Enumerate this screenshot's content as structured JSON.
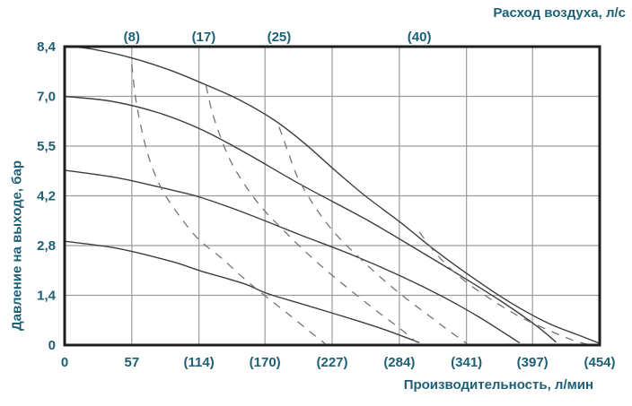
{
  "chart_data": {
    "type": "line",
    "title_top": "Расход воздуха, л/с",
    "xlabel": "Производительность, л/мин",
    "ylabel": "Давление на выходе, бар",
    "grid": true,
    "x_axis": {
      "min": 0,
      "max": 454,
      "tick_values": [
        0,
        57,
        114,
        170,
        227,
        284,
        341,
        397,
        454
      ],
      "tick_labels": [
        "0",
        "57",
        "(114)",
        "(170)",
        "(227)",
        "(284)",
        "(341)",
        "(397)",
        "(454)"
      ]
    },
    "y_axis": {
      "min": 0,
      "max": 8.4,
      "tick_values": [
        0,
        1.4,
        2.8,
        4.2,
        5.5,
        7.0,
        8.4
      ],
      "tick_labels": [
        "0",
        "1,4",
        "2,8",
        "4,2",
        "5,5",
        "7,0",
        "8,4"
      ]
    },
    "top_axis": {
      "ticks": [
        {
          "x": 57,
          "label": "(8)"
        },
        {
          "x": 118,
          "label": "(17)"
        },
        {
          "x": 182,
          "label": "(25)"
        },
        {
          "x": 301,
          "label": "(40)"
        }
      ]
    },
    "series": [
      {
        "name": "performance-curve-8.4-bar",
        "style": "solid",
        "points": [
          [
            0,
            8.42
          ],
          [
            25,
            8.32
          ],
          [
            57,
            8.08
          ],
          [
            90,
            7.73
          ],
          [
            118,
            7.35
          ],
          [
            148,
            6.9
          ],
          [
            178,
            6.28
          ],
          [
            203,
            5.6
          ],
          [
            230,
            4.85
          ],
          [
            255,
            4.2
          ],
          [
            285,
            3.45
          ],
          [
            315,
            2.65
          ],
          [
            347,
            1.88
          ],
          [
            378,
            1.2
          ],
          [
            410,
            0.62
          ],
          [
            436,
            0.28
          ],
          [
            453,
            0.06
          ]
        ]
      },
      {
        "name": "performance-curve-7.0-bar",
        "style": "solid",
        "points": [
          [
            0,
            7.0
          ],
          [
            40,
            6.85
          ],
          [
            80,
            6.5
          ],
          [
            116,
            6.0
          ],
          [
            152,
            5.35
          ],
          [
            200,
            4.5
          ],
          [
            255,
            3.55
          ],
          [
            296,
            2.75
          ],
          [
            336,
            1.95
          ],
          [
            371,
            1.22
          ],
          [
            400,
            0.55
          ],
          [
            417,
            0.08
          ]
        ]
      },
      {
        "name": "performance-curve-4.9-bar",
        "style": "solid",
        "points": [
          [
            0,
            4.87
          ],
          [
            45,
            4.67
          ],
          [
            91,
            4.35
          ],
          [
            116,
            4.15
          ],
          [
            152,
            3.73
          ],
          [
            200,
            3.1
          ],
          [
            243,
            2.55
          ],
          [
            286,
            1.93
          ],
          [
            321,
            1.36
          ],
          [
            351,
            0.8
          ],
          [
            373,
            0.34
          ],
          [
            386,
            0.06
          ]
        ]
      },
      {
        "name": "performance-curve-2.9-bar",
        "style": "solid",
        "points": [
          [
            0,
            2.92
          ],
          [
            45,
            2.72
          ],
          [
            91,
            2.35
          ],
          [
            116,
            2.08
          ],
          [
            152,
            1.73
          ],
          [
            172,
            1.45
          ],
          [
            202,
            1.15
          ],
          [
            241,
            0.76
          ],
          [
            271,
            0.44
          ],
          [
            301,
            0.07
          ]
        ]
      },
      {
        "name": "air-consumption-8-l-s",
        "style": "dashed",
        "points": [
          [
            57,
            7.9
          ],
          [
            60,
            7.0
          ],
          [
            65,
            6.05
          ],
          [
            72,
            5.15
          ],
          [
            82,
            4.4
          ],
          [
            96,
            3.7
          ],
          [
            113,
            3.0
          ],
          [
            134,
            2.42
          ],
          [
            153,
            1.85
          ],
          [
            171,
            1.36
          ],
          [
            191,
            0.84
          ],
          [
            208,
            0.38
          ],
          [
            221,
            0.04
          ]
        ]
      },
      {
        "name": "air-consumption-17-l-s",
        "style": "dashed",
        "points": [
          [
            120,
            7.3
          ],
          [
            125,
            6.55
          ],
          [
            132,
            5.8
          ],
          [
            141,
            5.1
          ],
          [
            153,
            4.48
          ],
          [
            167,
            3.88
          ],
          [
            183,
            3.32
          ],
          [
            201,
            2.73
          ],
          [
            221,
            2.13
          ],
          [
            243,
            1.53
          ],
          [
            264,
            0.98
          ],
          [
            284,
            0.48
          ],
          [
            299,
            0.07
          ]
        ]
      },
      {
        "name": "air-consumption-25-l-s",
        "style": "dashed",
        "points": [
          [
            182,
            6.08
          ],
          [
            189,
            5.4
          ],
          [
            197,
            4.73
          ],
          [
            208,
            4.12
          ],
          [
            220,
            3.53
          ],
          [
            234,
            2.98
          ],
          [
            251,
            2.43
          ],
          [
            269,
            1.88
          ],
          [
            289,
            1.33
          ],
          [
            309,
            0.83
          ],
          [
            327,
            0.38
          ],
          [
            341,
            0.05
          ]
        ]
      },
      {
        "name": "air-consumption-40-l-s",
        "style": "dashed",
        "points": [
          [
            301,
            3.18
          ],
          [
            313,
            2.66
          ],
          [
            327,
            2.16
          ],
          [
            344,
            1.69
          ],
          [
            364,
            1.24
          ],
          [
            386,
            0.8
          ],
          [
            409,
            0.44
          ],
          [
            431,
            0.14
          ],
          [
            444,
            0.02
          ]
        ]
      }
    ],
    "colors": {
      "label": "#1d5f75",
      "border": "#1f1f1f",
      "grid": "#9c9c9c",
      "solid_curve": "#3d3d3d",
      "dashed_curve": "#757575",
      "background": "#ffffff"
    }
  }
}
